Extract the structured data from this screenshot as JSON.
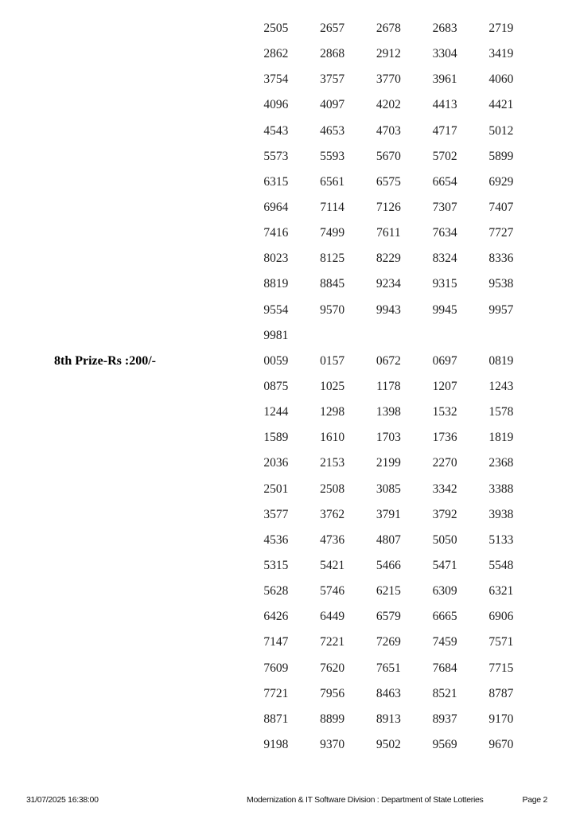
{
  "page": {
    "background_color": "#ffffff",
    "text_color": "#1f1f1f"
  },
  "prize_sections": [
    {
      "label": "",
      "rows": [
        [
          "2505",
          "2657",
          "2678",
          "2683",
          "2719"
        ],
        [
          "2862",
          "2868",
          "2912",
          "3304",
          "3419"
        ],
        [
          "3754",
          "3757",
          "3770",
          "3961",
          "4060"
        ],
        [
          "4096",
          "4097",
          "4202",
          "4413",
          "4421"
        ],
        [
          "4543",
          "4653",
          "4703",
          "4717",
          "5012"
        ],
        [
          "5573",
          "5593",
          "5670",
          "5702",
          "5899"
        ],
        [
          "6315",
          "6561",
          "6575",
          "6654",
          "6929"
        ],
        [
          "6964",
          "7114",
          "7126",
          "7307",
          "7407"
        ],
        [
          "7416",
          "7499",
          "7611",
          "7634",
          "7727"
        ],
        [
          "8023",
          "8125",
          "8229",
          "8324",
          "8336"
        ],
        [
          "8819",
          "8845",
          "9234",
          "9315",
          "9538"
        ],
        [
          "9554",
          "9570",
          "9943",
          "9945",
          "9957"
        ],
        [
          "9981"
        ]
      ]
    },
    {
      "label": "8th Prize-Rs :200/-",
      "rows": [
        [
          "0059",
          "0157",
          "0672",
          "0697",
          "0819"
        ],
        [
          "0875",
          "1025",
          "1178",
          "1207",
          "1243"
        ],
        [
          "1244",
          "1298",
          "1398",
          "1532",
          "1578"
        ],
        [
          "1589",
          "1610",
          "1703",
          "1736",
          "1819"
        ],
        [
          "2036",
          "2153",
          "2199",
          "2270",
          "2368"
        ],
        [
          "2501",
          "2508",
          "3085",
          "3342",
          "3388"
        ],
        [
          "3577",
          "3762",
          "3791",
          "3792",
          "3938"
        ],
        [
          "4536",
          "4736",
          "4807",
          "5050",
          "5133"
        ],
        [
          "5315",
          "5421",
          "5466",
          "5471",
          "5548"
        ],
        [
          "5628",
          "5746",
          "6215",
          "6309",
          "6321"
        ],
        [
          "6426",
          "6449",
          "6579",
          "6665",
          "6906"
        ],
        [
          "7147",
          "7221",
          "7269",
          "7459",
          "7571"
        ],
        [
          "7609",
          "7620",
          "7651",
          "7684",
          "7715"
        ],
        [
          "7721",
          "7956",
          "8463",
          "8521",
          "8787"
        ],
        [
          "8871",
          "8899",
          "8913",
          "8937",
          "9170"
        ],
        [
          "9198",
          "9370",
          "9502",
          "9569",
          "9670"
        ]
      ]
    }
  ],
  "footer": {
    "datetime": "31/07/2025 16:38:00",
    "division": "Modernization & IT Software Division : Department of State Lotteries",
    "page_label": "Page 2"
  }
}
